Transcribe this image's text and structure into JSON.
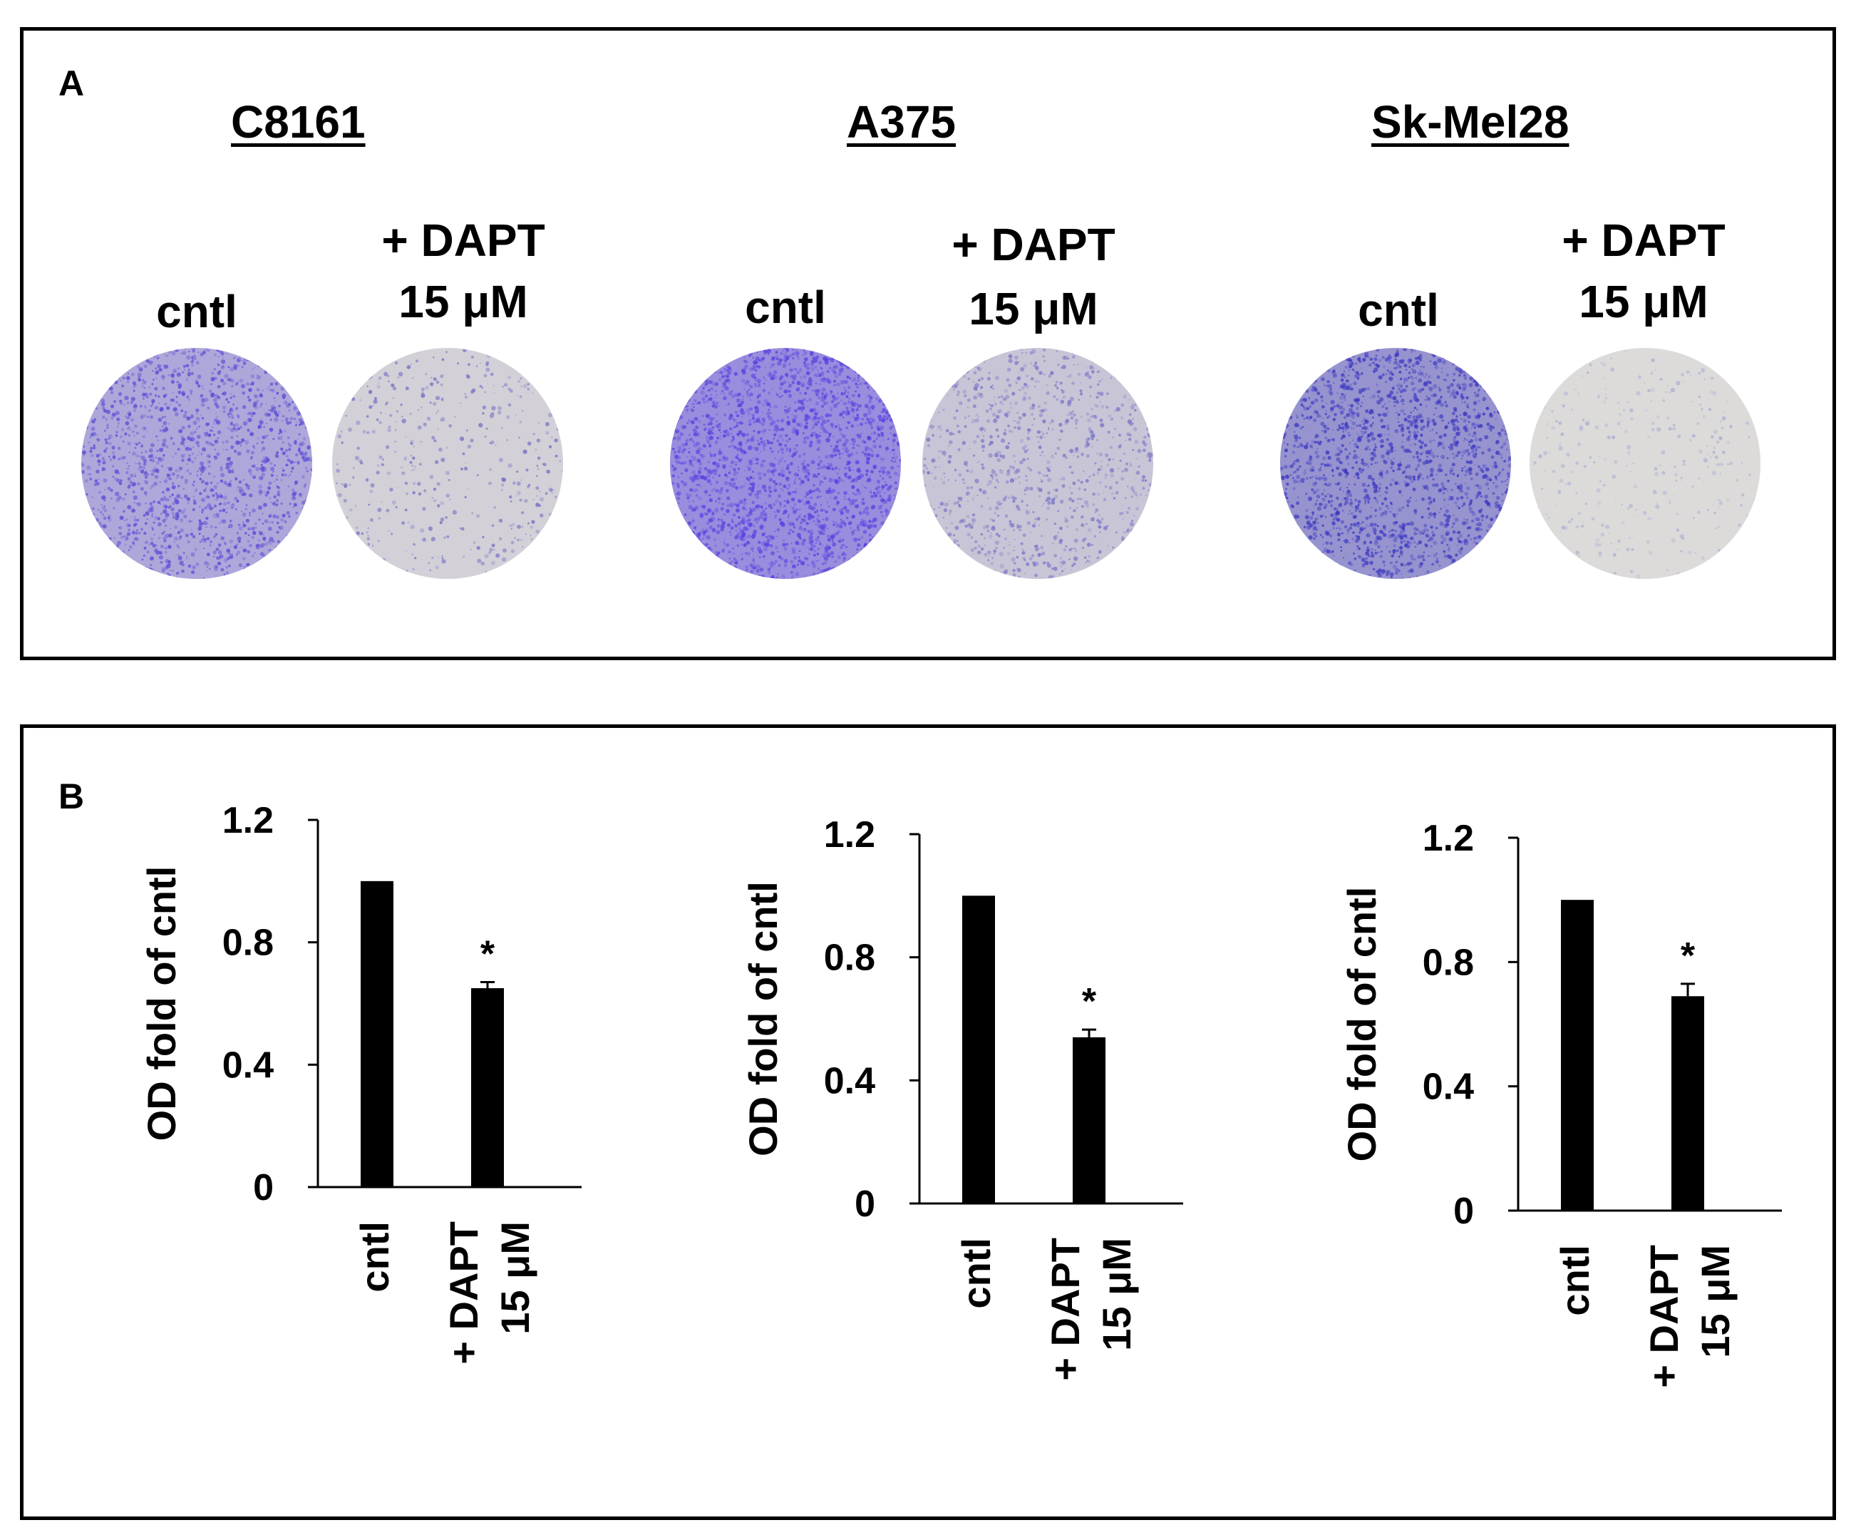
{
  "panel_a": {
    "letter": "A",
    "cell_lines": [
      {
        "name": "C8161",
        "conditions": [
          {
            "label": "cntl",
            "stain": "#5b4fd6",
            "density": 0.55
          },
          {
            "label_line1": "+ DAPT",
            "label_line2": "15 μM",
            "stain": "#7a74c4",
            "density": 0.08
          }
        ]
      },
      {
        "name": "A375",
        "conditions": [
          {
            "label": "cntl",
            "stain": "#5a45e0",
            "density": 0.85
          },
          {
            "label_line1": "+ DAPT",
            "label_line2": "15 μM",
            "stain": "#7d78c8",
            "density": 0.3
          }
        ]
      },
      {
        "name": "Sk-Mel28",
        "conditions": [
          {
            "label": "cntl",
            "stain": "#3e3ac2",
            "density": 0.7
          },
          {
            "label_line1": "+ DAPT",
            "label_line2": "15 μM",
            "stain": "#aeb2d2",
            "density": 0.02
          }
        ]
      }
    ]
  },
  "panel_b": {
    "letter": "B"
  },
  "chart_data": [
    {
      "type": "bar",
      "cell_line": "C8161",
      "categories": [
        "cntl",
        "+ DAPT 15 μM"
      ],
      "values": [
        1.0,
        0.65
      ],
      "errors": [
        0,
        0.02
      ],
      "significance": [
        "",
        "*"
      ],
      "ylabel": "OD fold of cntl",
      "ylim": [
        0,
        1.2
      ],
      "yticks": [
        "0",
        "0.4",
        "0.8",
        "1.2"
      ]
    },
    {
      "type": "bar",
      "cell_line": "A375",
      "categories": [
        "cntl",
        "+ DAPT 15 μM"
      ],
      "values": [
        1.0,
        0.54
      ],
      "errors": [
        0,
        0.025
      ],
      "significance": [
        "",
        "*"
      ],
      "ylabel": "OD fold of cntl",
      "ylim": [
        0,
        1.2
      ],
      "yticks": [
        "0",
        "0.4",
        "0.8",
        "1.2"
      ]
    },
    {
      "type": "bar",
      "cell_line": "Sk-Mel28",
      "categories": [
        "cntl",
        "+ DAPT 15 μM"
      ],
      "values": [
        1.0,
        0.69
      ],
      "errors": [
        0,
        0.04
      ],
      "significance": [
        "",
        "*"
      ],
      "ylabel": "OD fold of cntl",
      "ylim": [
        0,
        1.2
      ],
      "yticks": [
        "0",
        "0.4",
        "0.8",
        "1.2"
      ]
    }
  ],
  "colors": {
    "bar": "#000000",
    "axis": "#000000",
    "plate_background": "#e4e2dc"
  }
}
